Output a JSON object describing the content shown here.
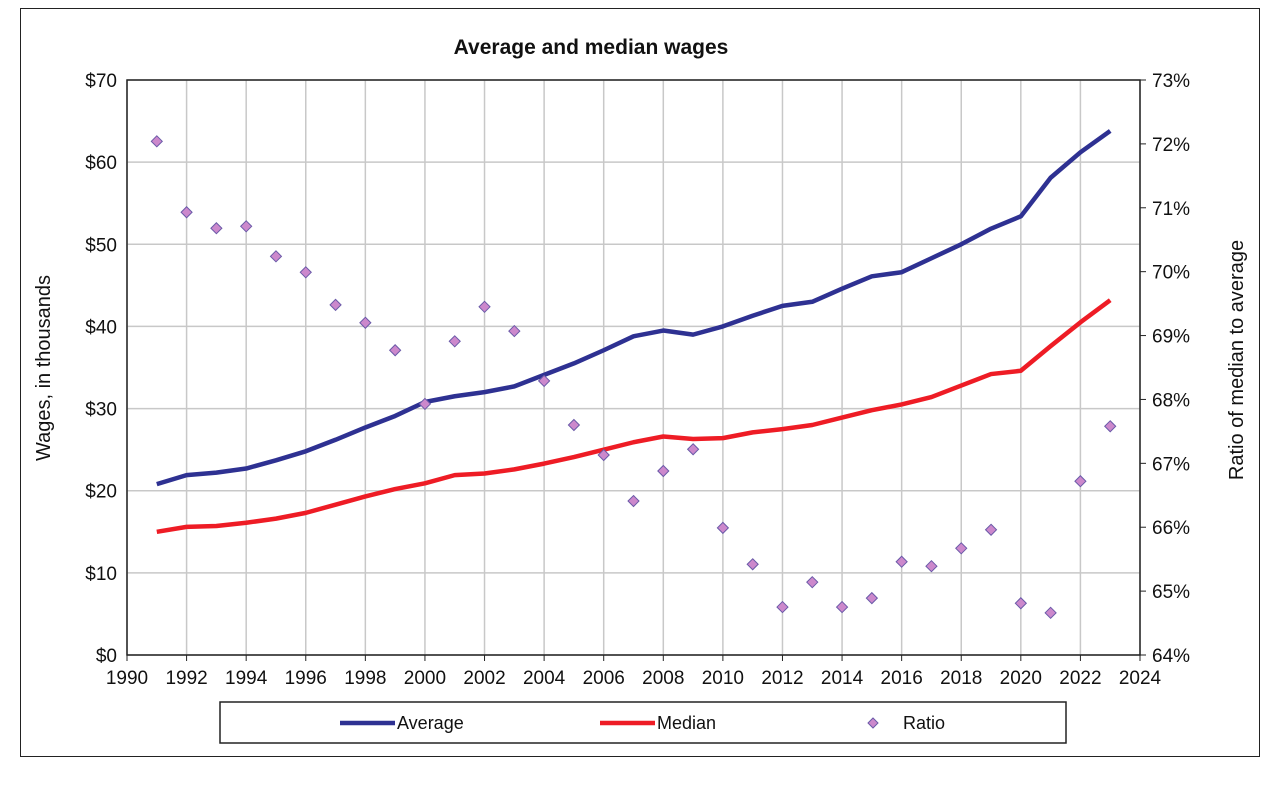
{
  "chart_data": {
    "type": "line",
    "title": "Average and median wages",
    "xlabel": "",
    "ylabel": "Wages, in thousands",
    "y2label": "Ratio of median to average",
    "xlim": [
      1990,
      2024
    ],
    "ylim": [
      0,
      70
    ],
    "y2lim": [
      64,
      73
    ],
    "grid": true,
    "legend_position": "bottom",
    "x_ticks": [
      "1990",
      "1992",
      "1994",
      "1996",
      "1998",
      "2000",
      "2002",
      "2004",
      "2006",
      "2008",
      "2010",
      "2012",
      "2014",
      "2016",
      "2018",
      "2020",
      "2022",
      "2024"
    ],
    "y_ticks": [
      "$0",
      "$10",
      "$20",
      "$30",
      "$40",
      "$50",
      "$60",
      "$70"
    ],
    "y2_ticks": [
      "64%",
      "65%",
      "66%",
      "67%",
      "68%",
      "69%",
      "70%",
      "71%",
      "72%",
      "73%"
    ],
    "x": [
      1991,
      1992,
      1993,
      1994,
      1995,
      1996,
      1997,
      1998,
      1999,
      2000,
      2001,
      2002,
      2003,
      2004,
      2005,
      2006,
      2007,
      2008,
      2009,
      2010,
      2011,
      2012,
      2013,
      2014,
      2015,
      2016,
      2017,
      2018,
      2019,
      2020,
      2021,
      2022,
      2023
    ],
    "series": [
      {
        "name": "Average",
        "type": "line",
        "axis": "left",
        "color": "#2e3192",
        "values": [
          20.8,
          21.9,
          22.2,
          22.7,
          23.7,
          24.8,
          26.2,
          27.7,
          29.1,
          30.8,
          31.5,
          32.0,
          32.7,
          34.1,
          35.5,
          37.1,
          38.8,
          39.5,
          39.0,
          40.0,
          41.3,
          42.5,
          43.0,
          44.6,
          46.1,
          46.6,
          48.3,
          50.0,
          51.9,
          53.4,
          58.1,
          61.2,
          63.8
        ]
      },
      {
        "name": "Median",
        "type": "line",
        "axis": "left",
        "color": "#ee1c25",
        "values": [
          15.0,
          15.6,
          15.7,
          16.1,
          16.6,
          17.3,
          18.3,
          19.3,
          20.2,
          20.9,
          21.9,
          22.1,
          22.6,
          23.3,
          24.1,
          25.0,
          25.9,
          26.6,
          26.3,
          26.4,
          27.1,
          27.5,
          28.0,
          28.9,
          29.8,
          30.5,
          31.4,
          32.8,
          34.2,
          34.6,
          37.6,
          40.5,
          43.2
        ]
      },
      {
        "name": "Ratio",
        "type": "scatter",
        "axis": "right",
        "color": "#cc88cc",
        "values": [
          72.04,
          70.93,
          70.68,
          70.71,
          70.24,
          69.99,
          69.48,
          69.2,
          68.77,
          67.93,
          68.91,
          69.45,
          69.07,
          68.29,
          67.6,
          67.13,
          66.41,
          66.88,
          67.22,
          65.99,
          65.42,
          64.75,
          65.14,
          64.75,
          64.89,
          65.46,
          65.39,
          65.67,
          65.96,
          64.81,
          64.66,
          66.72,
          67.58
        ]
      }
    ]
  }
}
